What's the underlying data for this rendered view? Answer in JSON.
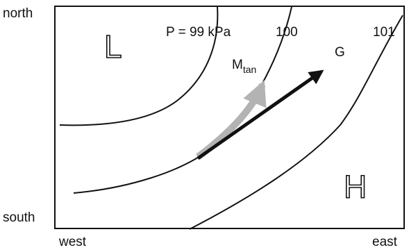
{
  "axes": {
    "north": "north",
    "south": "south",
    "west": "west",
    "east": "east"
  },
  "isobars": {
    "p99": "P = 99 kPa",
    "p100": "100",
    "p101": "101"
  },
  "pressure_centers": {
    "low": "L",
    "high": "H"
  },
  "vectors": {
    "momentum_main": "M",
    "momentum_sub": "tan",
    "geostrophic": "G"
  },
  "colors": {
    "momentum_arrow": "#b3b3b3",
    "geostrophic_arrow": "#111111",
    "lines": "#111111"
  }
}
